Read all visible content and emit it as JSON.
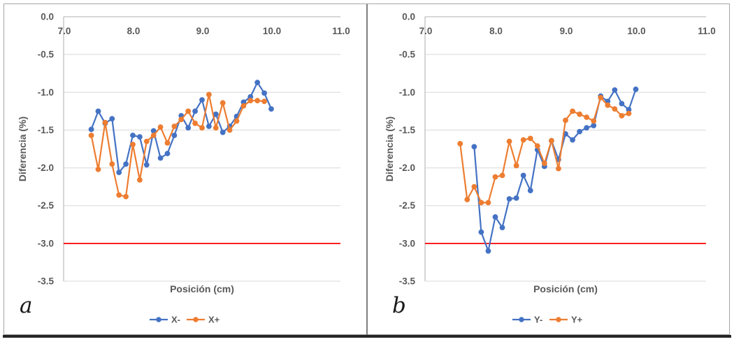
{
  "figure": {
    "background": "#ffffff",
    "border_color": "#a6a6a6",
    "divider_color": "#7f7f7f",
    "bottom_bar_color": "#262626",
    "text_color": "#595959",
    "grid_color": "#d9d9d9",
    "axis_color": "#bfbfbf"
  },
  "panels": [
    {
      "letter": "a"
    },
    {
      "letter": "b"
    }
  ],
  "chart_data": [
    {
      "type": "line",
      "markers": true,
      "panel": "a",
      "title": "",
      "xlabel": "Posición (cm)",
      "ylabel": "Diferencia (%)",
      "xlim": [
        7.0,
        11.0
      ],
      "ylim": [
        0.0,
        -3.5
      ],
      "grid": true,
      "legend_position": "bottom",
      "x_tick_labels": [
        "7.0",
        "8.0",
        "9.0",
        "10.0",
        "11.0"
      ],
      "y_tick_labels": [
        "0.0",
        "-0.5",
        "-1.0",
        "-1.5",
        "-2.0",
        "-2.5",
        "-3.0",
        "-3.5"
      ],
      "reference_line": {
        "y": -3.0,
        "color": "#FF0000"
      },
      "series": [
        {
          "name": "X-",
          "color": "#4472C4",
          "x": [
            7.4,
            7.5,
            7.6,
            7.7,
            7.8,
            7.9,
            8.0,
            8.1,
            8.2,
            8.3,
            8.4,
            8.5,
            8.6,
            8.7,
            8.8,
            8.9,
            9.0,
            9.1,
            9.2,
            9.3,
            9.4,
            9.5,
            9.6,
            9.7,
            9.8,
            9.9,
            10.0
          ],
          "y": [
            -1.49,
            -1.25,
            -1.41,
            -1.35,
            -2.06,
            -1.95,
            -1.57,
            -1.59,
            -1.96,
            -1.51,
            -1.87,
            -1.81,
            -1.57,
            -1.31,
            -1.47,
            -1.25,
            -1.1,
            -1.45,
            -1.29,
            -1.53,
            -1.45,
            -1.32,
            -1.13,
            -1.06,
            -0.87,
            -1.01,
            -1.22
          ]
        },
        {
          "name": "X+",
          "color": "#ED7D31",
          "x": [
            7.4,
            7.5,
            7.6,
            7.7,
            7.8,
            7.9,
            8.0,
            8.1,
            8.2,
            8.3,
            8.4,
            8.5,
            8.6,
            8.7,
            8.8,
            8.9,
            9.0,
            9.1,
            9.2,
            9.3,
            9.4,
            9.5,
            9.6,
            9.7,
            9.8,
            9.9
          ],
          "y": [
            -1.57,
            -2.02,
            -1.4,
            -1.95,
            -2.36,
            -2.38,
            -1.69,
            -2.16,
            -1.65,
            -1.57,
            -1.46,
            -1.67,
            -1.45,
            -1.36,
            -1.25,
            -1.41,
            -1.47,
            -1.03,
            -1.47,
            -1.14,
            -1.5,
            -1.38,
            -1.18,
            -1.11,
            -1.11,
            -1.12
          ]
        }
      ]
    },
    {
      "type": "line",
      "markers": true,
      "panel": "b",
      "title": "",
      "xlabel": "Posición (cm)",
      "ylabel": "Diferencia (%)",
      "xlim": [
        7.0,
        11.0
      ],
      "ylim": [
        0.0,
        -3.5
      ],
      "grid": true,
      "legend_position": "bottom",
      "x_tick_labels": [
        "7.0",
        "8.0",
        "9.0",
        "10.0",
        "11.0"
      ],
      "y_tick_labels": [
        "0.0",
        "-0.5",
        "-1.0",
        "-1.5",
        "-2.0",
        "-2.5",
        "-3.0",
        "-3.5"
      ],
      "reference_line": {
        "y": -3.0,
        "color": "#FF0000"
      },
      "series": [
        {
          "name": "Y-",
          "color": "#4472C4",
          "x": [
            7.7,
            7.8,
            7.9,
            8.0,
            8.1,
            8.2,
            8.3,
            8.4,
            8.5,
            8.6,
            8.7,
            8.8,
            8.9,
            9.0,
            9.1,
            9.2,
            9.3,
            9.4,
            9.5,
            9.6,
            9.7,
            9.8,
            9.9,
            10.0
          ],
          "y": [
            -1.72,
            -2.85,
            -3.1,
            -2.65,
            -2.79,
            -2.41,
            -2.4,
            -2.1,
            -2.3,
            -1.76,
            -1.98,
            -1.64,
            -1.89,
            -1.55,
            -1.63,
            -1.52,
            -1.47,
            -1.44,
            -1.05,
            -1.12,
            -0.97,
            -1.15,
            -1.23,
            -0.96
          ]
        },
        {
          "name": "Y+",
          "color": "#ED7D31",
          "x": [
            7.5,
            7.6,
            7.7,
            7.8,
            7.9,
            8.0,
            8.1,
            8.2,
            8.3,
            8.4,
            8.5,
            8.6,
            8.7,
            8.8,
            8.9,
            9.0,
            9.1,
            9.2,
            9.3,
            9.4,
            9.5,
            9.6,
            9.7,
            9.8,
            9.9
          ],
          "y": [
            -1.68,
            -2.42,
            -2.25,
            -2.46,
            -2.46,
            -2.12,
            -2.1,
            -1.65,
            -1.97,
            -1.63,
            -1.61,
            -1.71,
            -1.94,
            -1.64,
            -2.01,
            -1.37,
            -1.25,
            -1.29,
            -1.33,
            -1.38,
            -1.07,
            -1.17,
            -1.22,
            -1.31,
            -1.28
          ]
        }
      ]
    }
  ]
}
